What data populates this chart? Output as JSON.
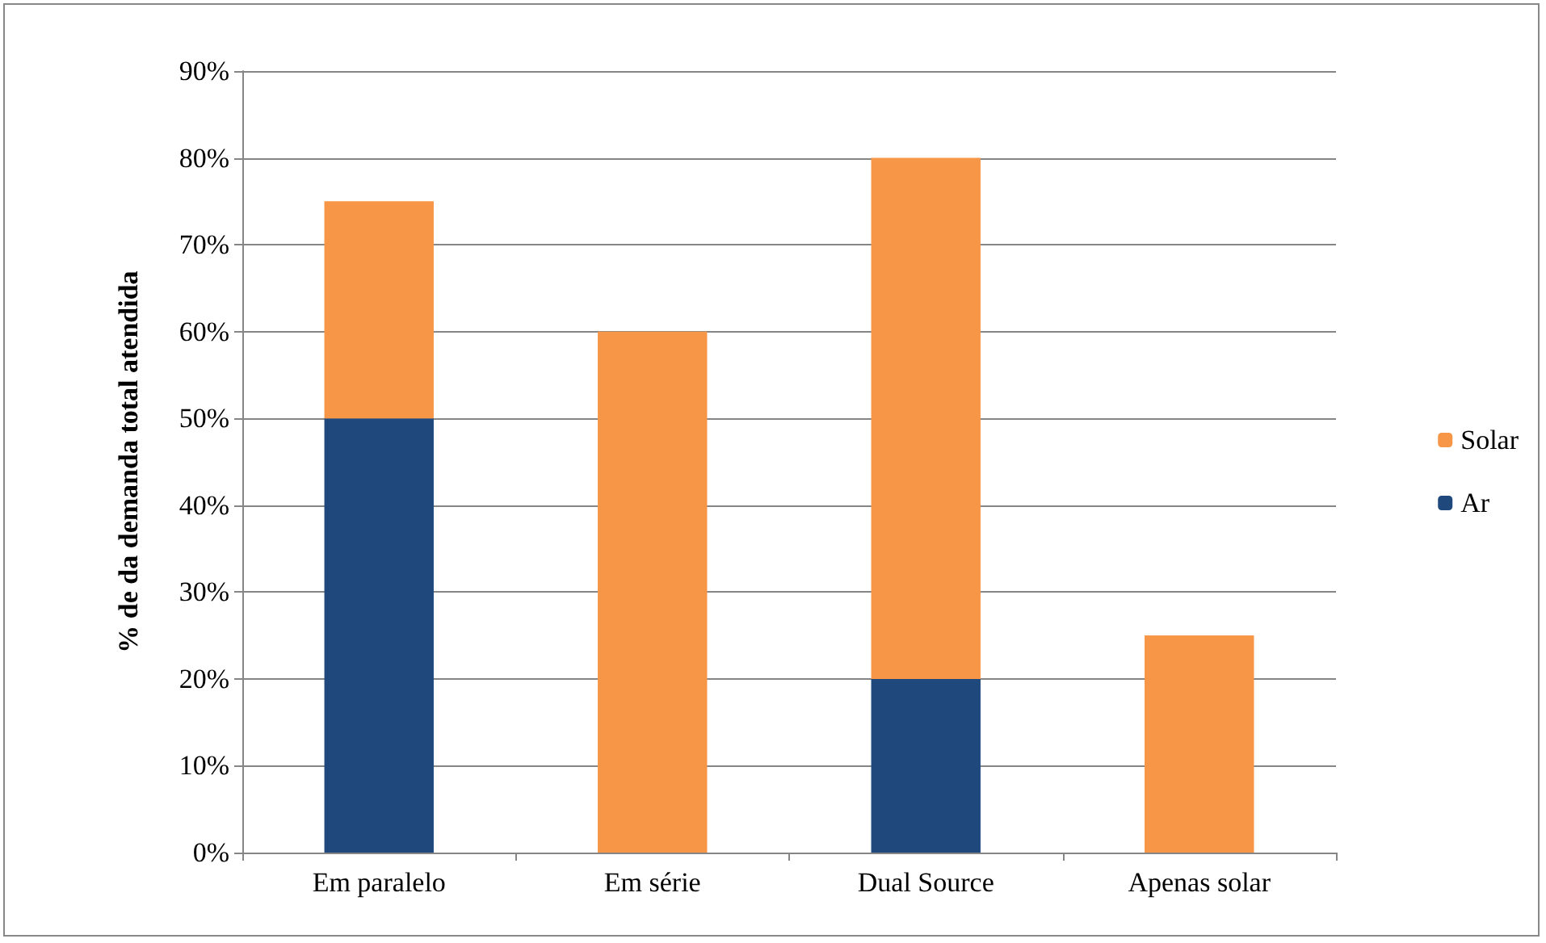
{
  "chart_data": {
    "type": "bar",
    "stacked": true,
    "ylabel": "% de da demanda total atendida",
    "categories": [
      "Em paralelo",
      "Em série",
      "Dual Source",
      "Apenas solar"
    ],
    "series": [
      {
        "name": "Ar",
        "color": "#1f497d",
        "values": [
          50,
          0,
          20,
          0
        ]
      },
      {
        "name": "Solar",
        "color": "#f79646",
        "values": [
          25,
          60,
          60,
          25
        ]
      }
    ],
    "ylim": [
      0,
      90
    ],
    "yticks": [
      {
        "value": 0,
        "label": "0%"
      },
      {
        "value": 10,
        "label": "10%"
      },
      {
        "value": 20,
        "label": "20%"
      },
      {
        "value": 30,
        "label": "30%"
      },
      {
        "value": 40,
        "label": "40%"
      },
      {
        "value": 50,
        "label": "50%"
      },
      {
        "value": 60,
        "label": "60%"
      },
      {
        "value": 70,
        "label": "70%"
      },
      {
        "value": 80,
        "label": "80%"
      },
      {
        "value": 90,
        "label": "90%"
      }
    ],
    "grid": "y",
    "legend": "right"
  }
}
